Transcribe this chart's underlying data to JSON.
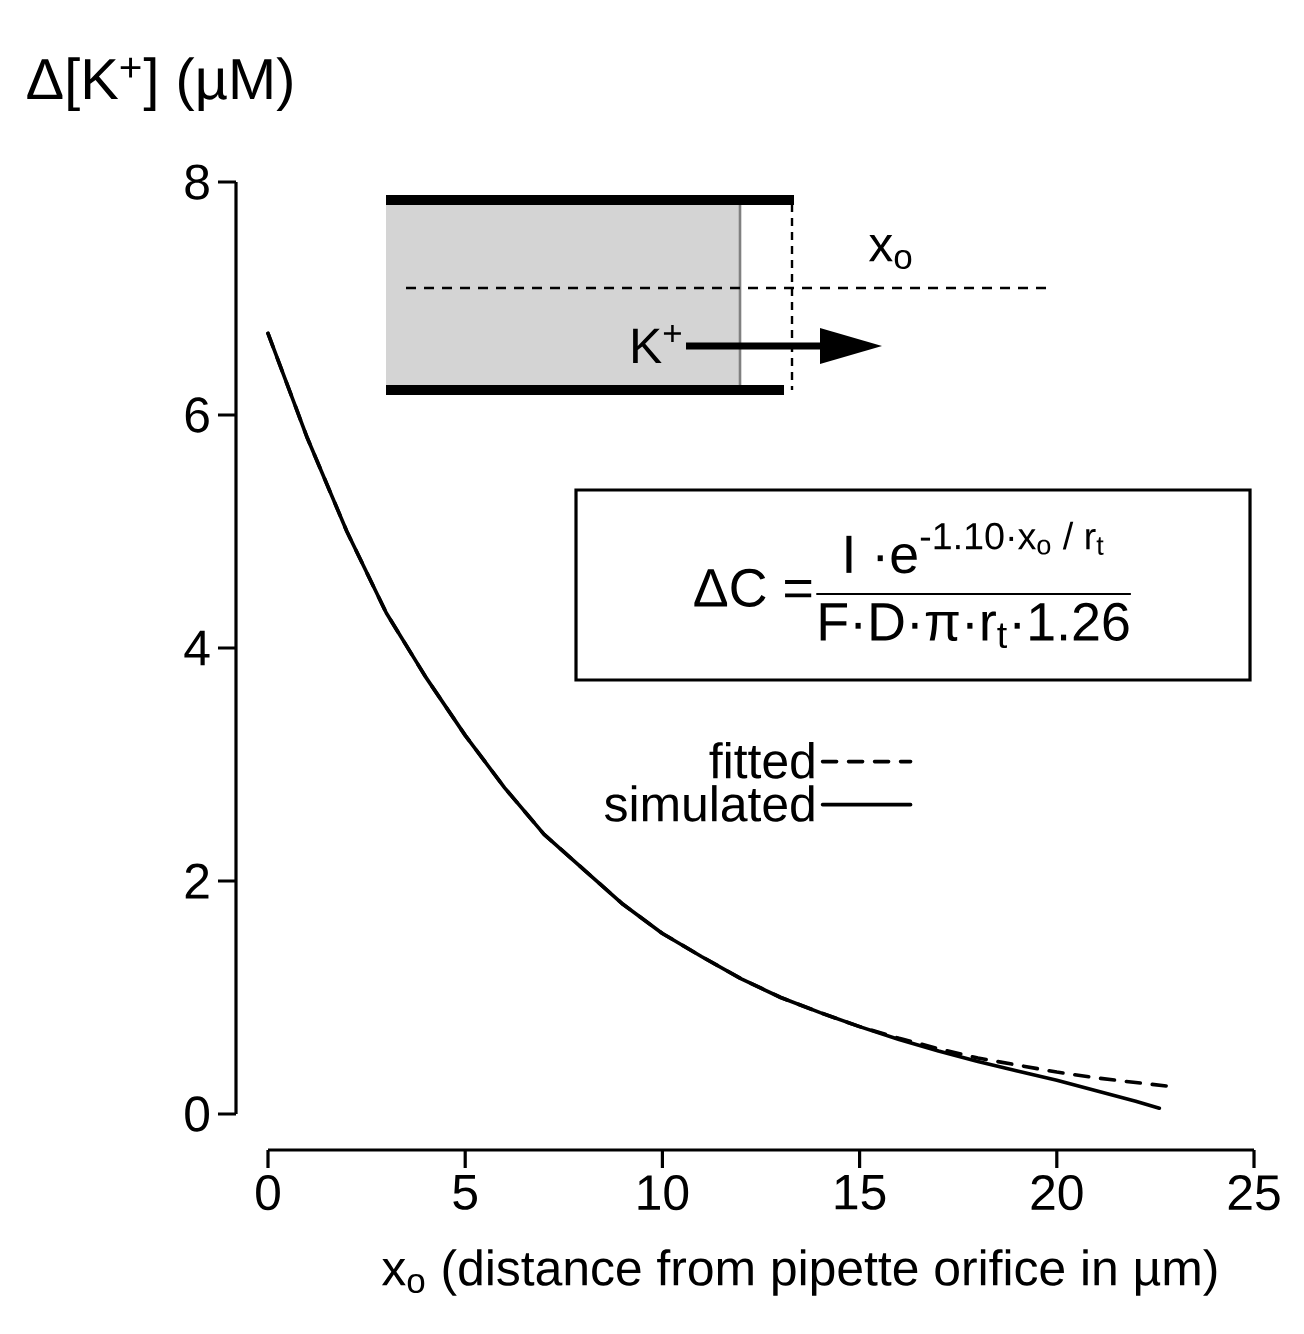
{
  "chart_data": {
    "type": "line",
    "ylabel": "Δ[K$^{+}$] (µM)",
    "xlabel": "x$_{o}$ (distance from pipette orifice in µm)",
    "xlim": [
      0,
      25
    ],
    "xticks": [
      0,
      5,
      10,
      15,
      20,
      25
    ],
    "ylim": [
      0,
      8
    ],
    "yticks": [
      0,
      2,
      4,
      6,
      8
    ],
    "legend": "right",
    "annotations": [
      "x$_{o}$",
      "K$^{+}$",
      "\\text{ΔC =} \\frac{\\text{I ·e}^{\\text{-1.10·x}_{\\text{o}}\\text{ / r}_{\\text{t}}}}{\\text{F·D·π·r}_{\\text{t}}\\text{·1.26}}"
    ],
    "series": [
      {
        "name": "fitted",
        "color": "#000000",
        "line_style": "dashed",
        "x": [
          0,
          1,
          2,
          3,
          4,
          5,
          6,
          7,
          8,
          9,
          10,
          11,
          12,
          13,
          14,
          15,
          16,
          17,
          18,
          19,
          20,
          21,
          22,
          22.8
        ],
        "values": [
          6.7,
          5.8,
          5.0,
          4.3,
          3.75,
          3.25,
          2.8,
          2.4,
          2.1,
          1.8,
          1.55,
          1.35,
          1.16,
          1.0,
          0.87,
          0.75,
          0.65,
          0.56,
          0.48,
          0.42,
          0.36,
          0.31,
          0.27,
          0.24
        ]
      },
      {
        "name": "simulated",
        "color": "#000000",
        "line_style": "solid",
        "x": [
          0,
          1,
          2,
          3,
          4,
          5,
          6,
          7,
          8,
          9,
          10,
          11,
          12,
          13,
          14,
          15,
          16,
          17,
          18,
          19,
          20,
          21,
          22,
          22.6
        ],
        "values": [
          6.7,
          5.8,
          5.0,
          4.3,
          3.75,
          3.25,
          2.8,
          2.4,
          2.1,
          1.8,
          1.55,
          1.35,
          1.16,
          1.0,
          0.87,
          0.75,
          0.64,
          0.54,
          0.45,
          0.37,
          0.29,
          0.2,
          0.11,
          0.05
        ]
      }
    ]
  }
}
